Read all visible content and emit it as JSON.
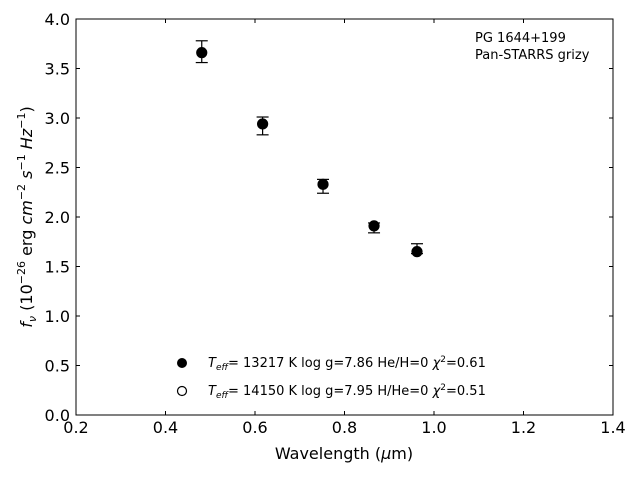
{
  "chart_data": {
    "type": "scatter",
    "title": "",
    "xlabel": "Wavelength (μm)",
    "ylabel": "f_ν (10^-26 erg cm^-2 s^-1 Hz^-1)",
    "xlim": [
      0.2,
      1.4
    ],
    "ylim": [
      0.0,
      4.0
    ],
    "xticks": [
      0.2,
      0.4,
      0.6,
      0.8,
      1.0,
      1.2,
      1.4
    ],
    "xtick_labels": [
      "0.2",
      "0.4",
      "0.6",
      "0.8",
      "1.0",
      "1.2",
      "1.4"
    ],
    "yticks": [
      0.0,
      0.5,
      1.0,
      1.5,
      2.0,
      2.5,
      3.0,
      3.5,
      4.0
    ],
    "ytick_labels": [
      "0.0",
      "0.5",
      "1.0",
      "1.5",
      "2.0",
      "2.5",
      "3.0",
      "3.5",
      "4.0"
    ],
    "grid": false,
    "annotation": [
      "PG 1644+199",
      "Pan-STARRS grizy"
    ],
    "annotation_position": "top-right",
    "legend_position": "bottom-center",
    "observed": {
      "x": [
        0.481,
        0.617,
        0.752,
        0.866,
        0.962
      ],
      "y": [
        3.67,
        2.92,
        2.31,
        1.89,
        1.68
      ],
      "yerr": [
        0.11,
        0.09,
        0.07,
        0.05,
        0.05
      ]
    },
    "series": [
      {
        "name": "T_eff= 13217 K  log g=7.86  He/H=0  χ²=0.61",
        "marker": "filled-circle",
        "x": [
          0.481,
          0.617,
          0.752,
          0.866,
          0.962
        ],
        "y": [
          3.66,
          2.94,
          2.33,
          1.91,
          1.65
        ]
      },
      {
        "name": "T_eff= 14150 K  log g=7.95  H/He=0  χ²=0.51",
        "marker": "open-circle",
        "x": [
          0.481,
          0.617,
          0.752,
          0.866,
          0.962
        ],
        "y": [
          3.66,
          2.94,
          2.33,
          1.91,
          1.65
        ]
      }
    ]
  }
}
